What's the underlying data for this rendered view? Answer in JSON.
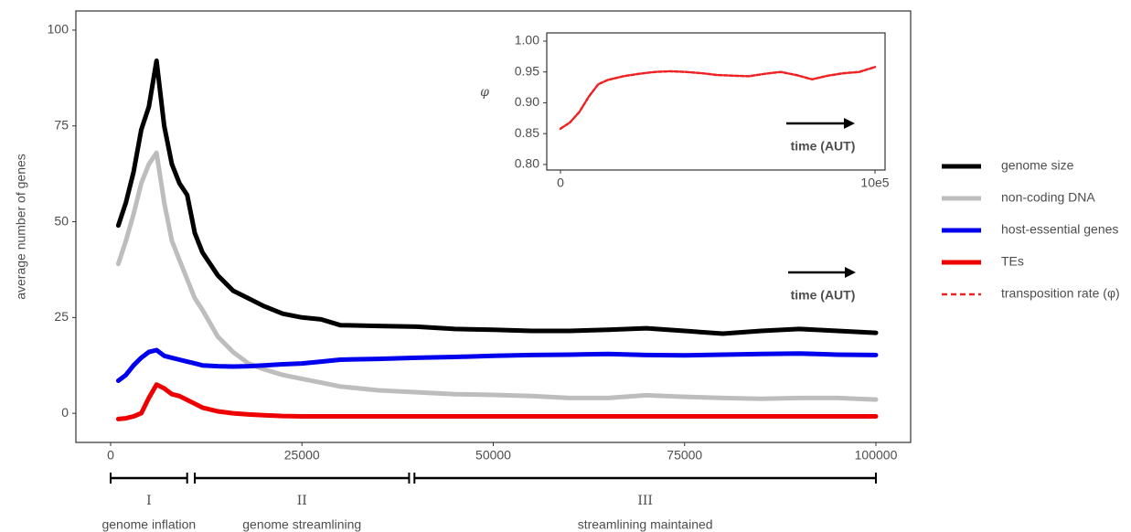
{
  "chart_data": [
    {
      "type": "line",
      "y_label": "average number of genes",
      "annotation": "time (AUT)",
      "x": [
        1000,
        2000,
        3000,
        4000,
        5000,
        6000,
        7000,
        8000,
        9000,
        10000,
        11000,
        12000,
        14000,
        16000,
        18000,
        20000,
        22500,
        25000,
        27500,
        30000,
        35000,
        40000,
        45000,
        50000,
        55000,
        60000,
        65000,
        70000,
        75000,
        80000,
        85000,
        90000,
        95000,
        100000
      ],
      "series": [
        {
          "name": "genome size",
          "color": "#000000",
          "values": [
            49,
            55,
            63,
            74,
            80,
            92,
            75,
            65,
            60,
            57,
            47,
            42,
            36,
            32,
            30,
            28,
            26,
            25,
            24.5,
            23,
            22.8,
            22.6,
            22,
            21.8,
            21.5,
            21.5,
            21.8,
            22.2,
            21.5,
            20.8,
            21.5,
            22,
            21.5,
            21
          ]
        },
        {
          "name": "non-coding DNA",
          "color": "#bdbdbd",
          "values": [
            39,
            45,
            52,
            60,
            65,
            68,
            55,
            45,
            40,
            35,
            30,
            27,
            20,
            16,
            13,
            11.5,
            10,
            9,
            8,
            7,
            6,
            5.5,
            5,
            4.8,
            4.5,
            4,
            4,
            4.7,
            4.3,
            4,
            3.8,
            4,
            4,
            3.6
          ]
        },
        {
          "name": "host-essential genes",
          "color": "#0000ee",
          "values": [
            8.5,
            10,
            12.5,
            14.5,
            16,
            16.5,
            15,
            14.5,
            14,
            13.5,
            13,
            12.5,
            12.3,
            12.2,
            12.3,
            12.5,
            12.8,
            13,
            13.5,
            14,
            14.2,
            14.5,
            14.7,
            15,
            15.2,
            15.3,
            15.5,
            15.2,
            15.1,
            15.3,
            15.5,
            15.6,
            15.3,
            15.2
          ]
        },
        {
          "name": "TEs",
          "color": "#ee0000",
          "values": [
            -1.5,
            -1.3,
            -0.8,
            0,
            4,
            7.5,
            6.5,
            5,
            4.5,
            3.5,
            2.5,
            1.5,
            0.5,
            0,
            -0.3,
            -0.5,
            -0.7,
            -0.8,
            -0.8,
            -0.8,
            -0.8,
            -0.8,
            -0.8,
            -0.8,
            -0.8,
            -0.8,
            -0.8,
            -0.8,
            -0.8,
            -0.8,
            -0.8,
            -0.8,
            -0.8,
            -0.8
          ]
        }
      ],
      "xlim": [
        -4540,
        104540
      ],
      "xticks": [
        0,
        25000,
        50000,
        75000,
        100000
      ],
      "ylim": [
        -7.6,
        105
      ],
      "yticks": [
        0,
        25,
        50,
        75,
        100
      ],
      "phases": [
        {
          "numeral": "I",
          "label": "genome inflation",
          "start": 0,
          "end": 10000
        },
        {
          "numeral": "II",
          "label": "genome streamlining",
          "start": 11000,
          "end": 39000
        },
        {
          "numeral": "III",
          "label": "streamlining maintained",
          "start": 39700,
          "end": 100000
        }
      ]
    },
    {
      "type": "line",
      "y_label": "φ",
      "annotation": "time (AUT)",
      "x": [
        0,
        30000,
        60000,
        90000,
        120000,
        150000,
        200000,
        250000,
        300000,
        350000,
        400000,
        450000,
        500000,
        550000,
        600000,
        650000,
        700000,
        750000,
        800000,
        850000,
        900000,
        950000,
        1000000
      ],
      "series": [
        {
          "name": "transposition rate (φ)",
          "color": "#ee2222",
          "dashed": true,
          "values": [
            0.858,
            0.868,
            0.885,
            0.91,
            0.93,
            0.937,
            0.943,
            0.947,
            0.95,
            0.951,
            0.95,
            0.948,
            0.945,
            0.944,
            0.943,
            0.947,
            0.95,
            0.945,
            0.938,
            0.944,
            0.948,
            0.95,
            0.958
          ]
        }
      ],
      "xlim": [
        -43600,
        1032000
      ],
      "xticks": [
        0,
        {
          "value": 1000000,
          "label": "10e5"
        }
      ],
      "ylim": [
        0.791,
        1.0133
      ],
      "yticks": [
        {
          "value": 0.8,
          "label": "0.80"
        },
        0.85,
        {
          "value": 0.9,
          "label": "0.90"
        },
        0.95,
        {
          "value": 1,
          "label": "1.00"
        }
      ]
    }
  ]
}
